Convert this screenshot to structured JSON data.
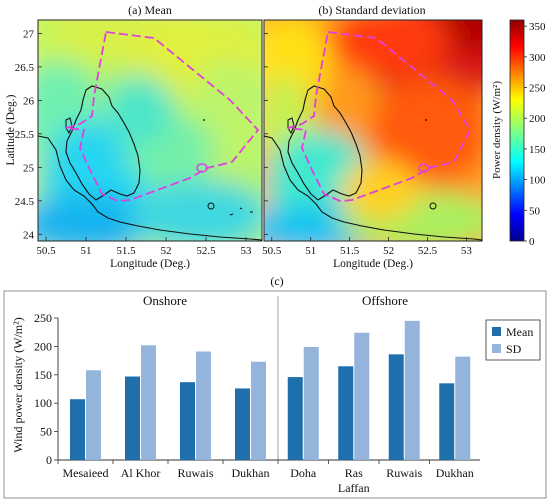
{
  "chart_data": [
    {
      "type": "heatmap",
      "title": "(a) Mean",
      "xlabel": "Longitude (Deg.)",
      "ylabel": "Latitude (Deg.)",
      "xlim": [
        50.4,
        53.2
      ],
      "ylim": [
        23.9,
        27.2
      ],
      "xticks": [
        "50.5",
        "51",
        "51.5",
        "52",
        "52.5",
        "53"
      ],
      "yticks": [
        "24",
        "24.5",
        "25",
        "25.5",
        "26",
        "26.5",
        "27"
      ],
      "value_range": [
        0,
        360
      ]
    },
    {
      "type": "heatmap",
      "title": "(b) Standard deviation",
      "xlabel": "Longitude (Deg.)",
      "xlim": [
        50.4,
        53.2
      ],
      "ylim": [
        23.9,
        27.2
      ],
      "xticks": [
        "50.5",
        "51",
        "51.5",
        "52",
        "52.5",
        "53"
      ],
      "value_range": [
        0,
        360
      ],
      "colorbar": {
        "label": "Power density (W/m²)",
        "ticks": [
          "0",
          "50",
          "100",
          "150",
          "200",
          "250",
          "300",
          "350"
        ]
      }
    },
    {
      "type": "bar",
      "title": "(c)",
      "ylabel": "Wind power density (W/m²)",
      "ylim": [
        0,
        250
      ],
      "yticks": [
        "0",
        "50",
        "100",
        "150",
        "200",
        "250"
      ],
      "groups": [
        {
          "label": "Onshore",
          "categories": [
            "Mesaieed",
            "Al Khor",
            "Ruwais",
            "Dukhan"
          ]
        },
        {
          "label": "Offshore",
          "categories": [
            "Doha",
            "Ras Laffan",
            "Ruwais",
            "Dukhan"
          ]
        }
      ],
      "series": [
        {
          "name": "Mean",
          "color": "#1f6fad",
          "values": [
            107,
            147,
            137,
            126,
            146,
            165,
            186,
            135
          ]
        },
        {
          "name": "SD",
          "color": "#95b4dc",
          "values": [
            158,
            202,
            191,
            173,
            199,
            224,
            245,
            182
          ]
        }
      ],
      "legend": "right"
    }
  ]
}
